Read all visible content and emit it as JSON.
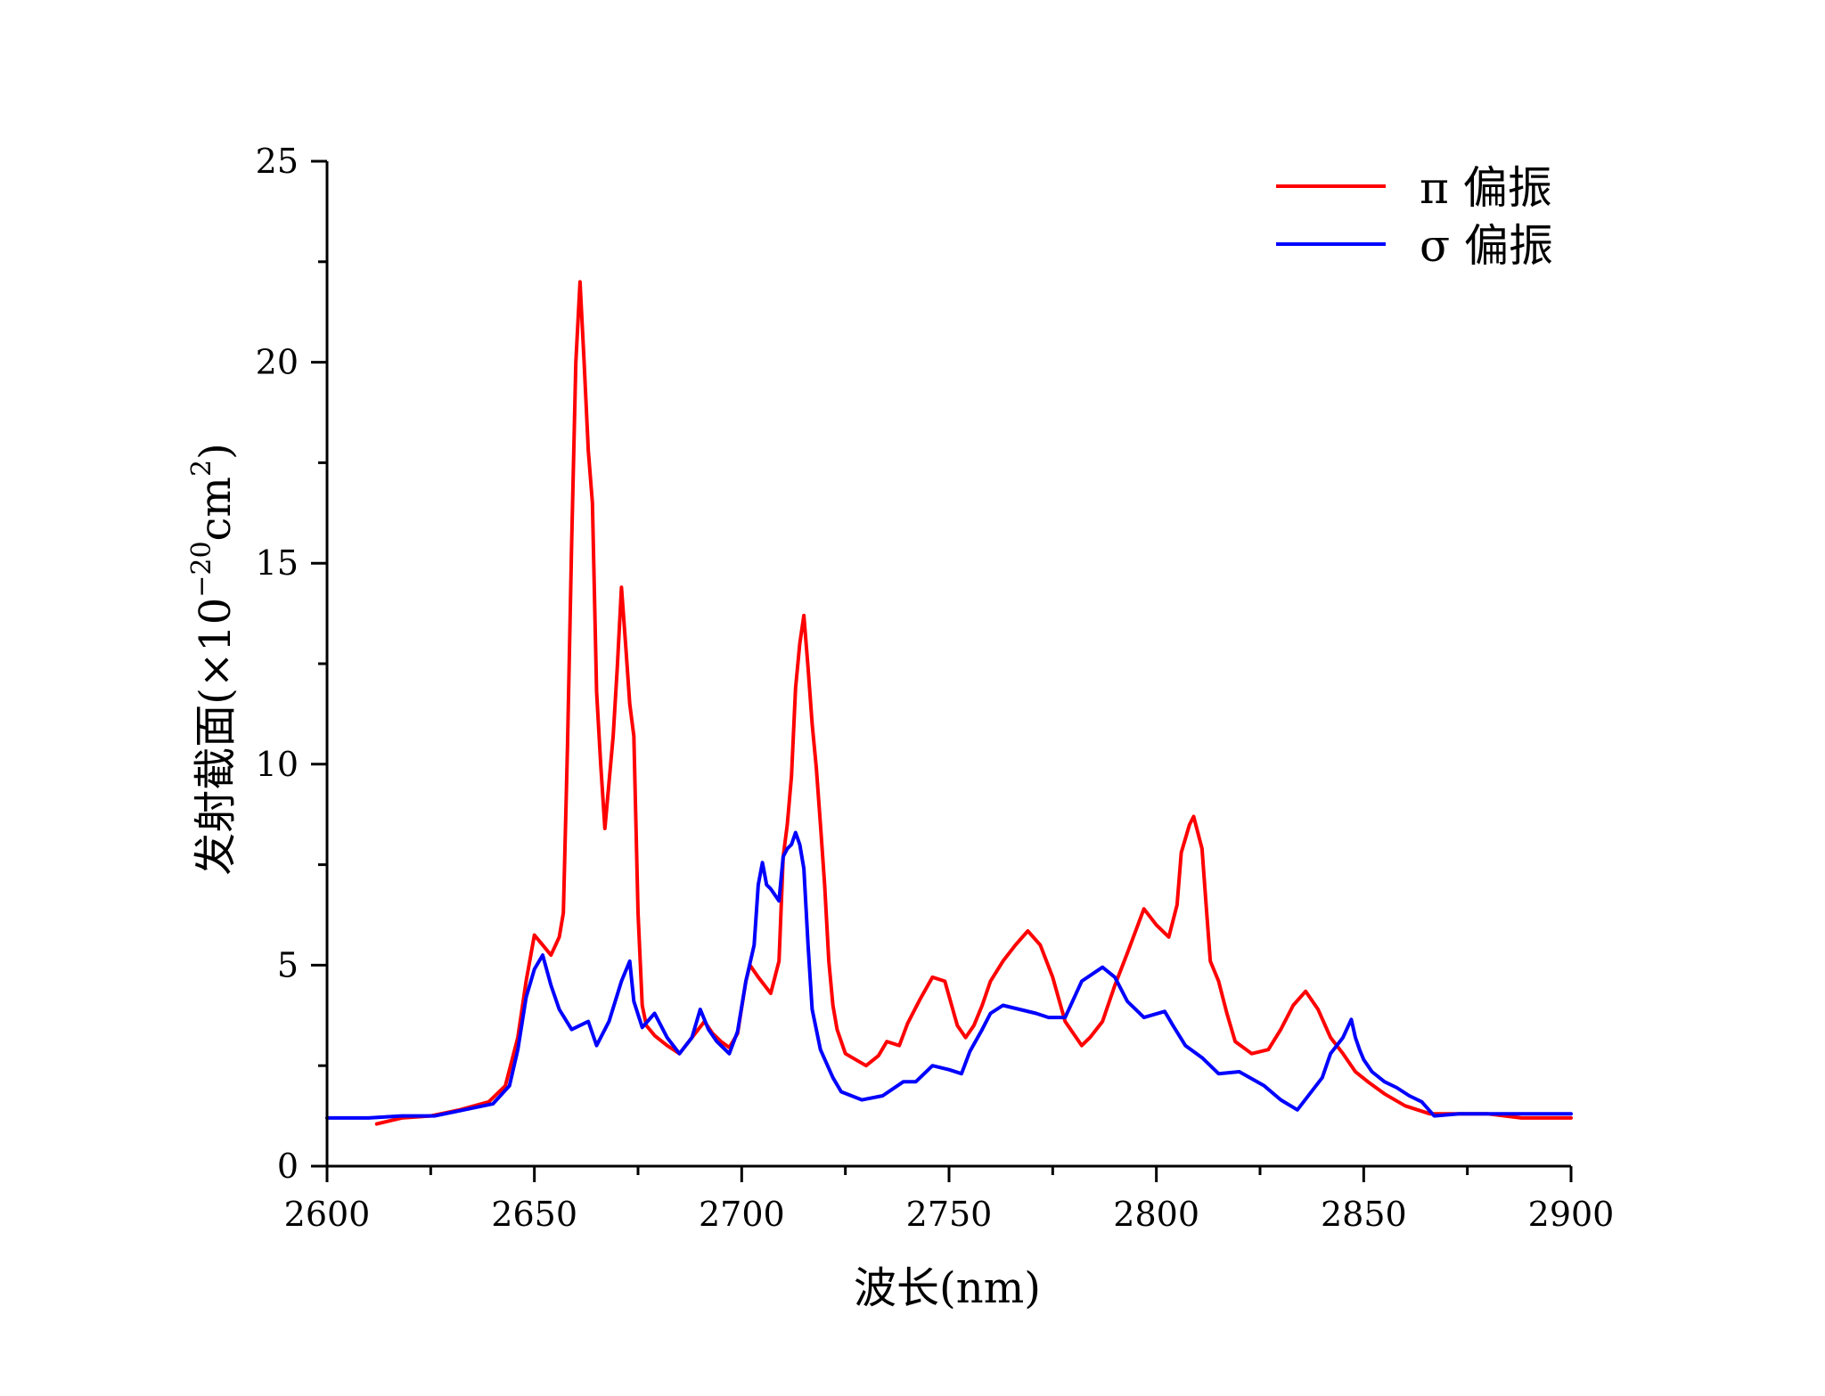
{
  "chart_data": {
    "type": "line",
    "title": "",
    "xlabel": "波长(nm)",
    "ylabel_main": "发射截面(×10",
    "ylabel_exp": "−20",
    "ylabel_unit": "cm",
    "ylabel_unit_exp": "2",
    "ylabel_close": ")",
    "xlim": [
      2600,
      2900
    ],
    "ylim": [
      0,
      25
    ],
    "x_ticks": [
      2600,
      2650,
      2700,
      2750,
      2800,
      2850,
      2900
    ],
    "y_ticks": [
      0,
      5,
      10,
      15,
      20,
      25
    ],
    "x_tick_labels": [
      "2600",
      "2650",
      "2700",
      "2750",
      "2800",
      "2850",
      "2900"
    ],
    "y_tick_labels": [
      "0",
      "5",
      "10",
      "15",
      "20",
      "25"
    ],
    "legend_position": "top-right",
    "series": [
      {
        "name": "π 偏振",
        "color": "#ff0000",
        "x": [
          2612,
          2618,
          2625,
          2632,
          2639,
          2643,
          2646,
          2648,
          2650,
          2652,
          2654,
          2656,
          2657,
          2658,
          2659,
          2660,
          2661,
          2662,
          2663,
          2664,
          2665,
          2666,
          2667,
          2669,
          2670,
          2671,
          2672,
          2673,
          2674,
          2675,
          2676,
          2677,
          2679,
          2682,
          2685,
          2688,
          2691,
          2693,
          2695,
          2697,
          2699,
          2701,
          2702,
          2704,
          2707,
          2709,
          2710,
          2711,
          2712,
          2713,
          2714,
          2715,
          2716,
          2717,
          2718,
          2719,
          2720,
          2721,
          2722,
          2723,
          2725,
          2730,
          2733,
          2735,
          2738,
          2740,
          2743,
          2746,
          2749,
          2752,
          2754,
          2756,
          2758,
          2760,
          2763,
          2766,
          2769,
          2772,
          2775,
          2778,
          2782,
          2784,
          2787,
          2790,
          2793,
          2797,
          2800,
          2803,
          2805,
          2806,
          2808,
          2809,
          2811,
          2812,
          2813,
          2815,
          2817,
          2819,
          2823,
          2827,
          2830,
          2833,
          2836,
          2839,
          2842,
          2845,
          2848,
          2851,
          2855,
          2860,
          2866,
          2872,
          2880,
          2888,
          2895,
          2900
        ],
        "values": [
          1.05,
          1.2,
          1.25,
          1.4,
          1.6,
          2.0,
          3.2,
          4.6,
          5.75,
          5.5,
          5.25,
          5.7,
          6.3,
          10.5,
          15.5,
          20.0,
          22.0,
          20.0,
          17.8,
          16.5,
          11.8,
          10.0,
          8.4,
          10.7,
          12.4,
          14.4,
          13.0,
          11.5,
          10.7,
          6.3,
          4.0,
          3.5,
          3.25,
          3.0,
          2.8,
          3.2,
          3.6,
          3.3,
          3.1,
          2.95,
          3.3,
          4.6,
          5.0,
          4.7,
          4.3,
          5.1,
          7.7,
          8.5,
          9.7,
          11.9,
          13.0,
          13.7,
          12.4,
          11.0,
          9.9,
          8.5,
          7.0,
          5.1,
          4.0,
          3.4,
          2.8,
          2.5,
          2.75,
          3.1,
          3.0,
          3.55,
          4.15,
          4.7,
          4.6,
          3.5,
          3.2,
          3.5,
          4.0,
          4.6,
          5.1,
          5.5,
          5.85,
          5.5,
          4.7,
          3.6,
          3.0,
          3.2,
          3.6,
          4.5,
          5.3,
          6.4,
          6.0,
          5.7,
          6.5,
          7.8,
          8.5,
          8.7,
          7.9,
          6.5,
          5.1,
          4.6,
          3.8,
          3.1,
          2.8,
          2.9,
          3.4,
          4.0,
          4.35,
          3.9,
          3.2,
          2.8,
          2.35,
          2.1,
          1.8,
          1.5,
          1.3,
          1.3,
          1.3,
          1.2,
          1.2,
          1.2
        ]
      },
      {
        "name": "σ 偏振",
        "color": "#0000ff",
        "x": [
          2600,
          2610,
          2618,
          2626,
          2633,
          2640,
          2644,
          2646,
          2648,
          2650,
          2652,
          2654,
          2656,
          2659,
          2663,
          2665,
          2668,
          2671,
          2673,
          2674,
          2676,
          2679,
          2682,
          2685,
          2688,
          2690,
          2692,
          2694,
          2697,
          2699,
          2701,
          2703,
          2704,
          2705,
          2706,
          2707,
          2709,
          2710,
          2711,
          2712,
          2713,
          2714,
          2715,
          2716,
          2717,
          2719,
          2722,
          2724,
          2729,
          2734,
          2739,
          2742,
          2746,
          2750,
          2753,
          2755,
          2758,
          2760,
          2763,
          2767,
          2771,
          2774,
          2778,
          2782,
          2787,
          2790,
          2793,
          2797,
          2802,
          2804,
          2807,
          2811,
          2815,
          2820,
          2826,
          2830,
          2834,
          2837,
          2840,
          2842,
          2845,
          2847,
          2848,
          2849,
          2850,
          2852,
          2855,
          2858,
          2861,
          2864,
          2867,
          2873,
          2880,
          2890,
          2900
        ],
        "values": [
          1.2,
          1.2,
          1.25,
          1.25,
          1.4,
          1.55,
          2.0,
          2.9,
          4.2,
          4.9,
          5.25,
          4.5,
          3.9,
          3.4,
          3.6,
          3.0,
          3.6,
          4.6,
          5.1,
          4.1,
          3.45,
          3.8,
          3.2,
          2.8,
          3.2,
          3.9,
          3.4,
          3.1,
          2.8,
          3.35,
          4.6,
          5.5,
          7.0,
          7.55,
          7.0,
          6.9,
          6.6,
          7.7,
          7.9,
          8.0,
          8.3,
          8.0,
          7.4,
          5.5,
          3.9,
          2.9,
          2.2,
          1.85,
          1.65,
          1.75,
          2.1,
          2.1,
          2.5,
          2.4,
          2.3,
          2.85,
          3.4,
          3.8,
          4.0,
          3.9,
          3.8,
          3.7,
          3.7,
          4.6,
          4.95,
          4.7,
          4.1,
          3.7,
          3.85,
          3.5,
          3.0,
          2.7,
          2.3,
          2.35,
          2.0,
          1.65,
          1.4,
          1.8,
          2.2,
          2.8,
          3.2,
          3.65,
          3.2,
          2.9,
          2.65,
          2.35,
          2.1,
          1.95,
          1.75,
          1.6,
          1.25,
          1.3,
          1.3,
          1.3,
          1.3
        ]
      }
    ]
  }
}
